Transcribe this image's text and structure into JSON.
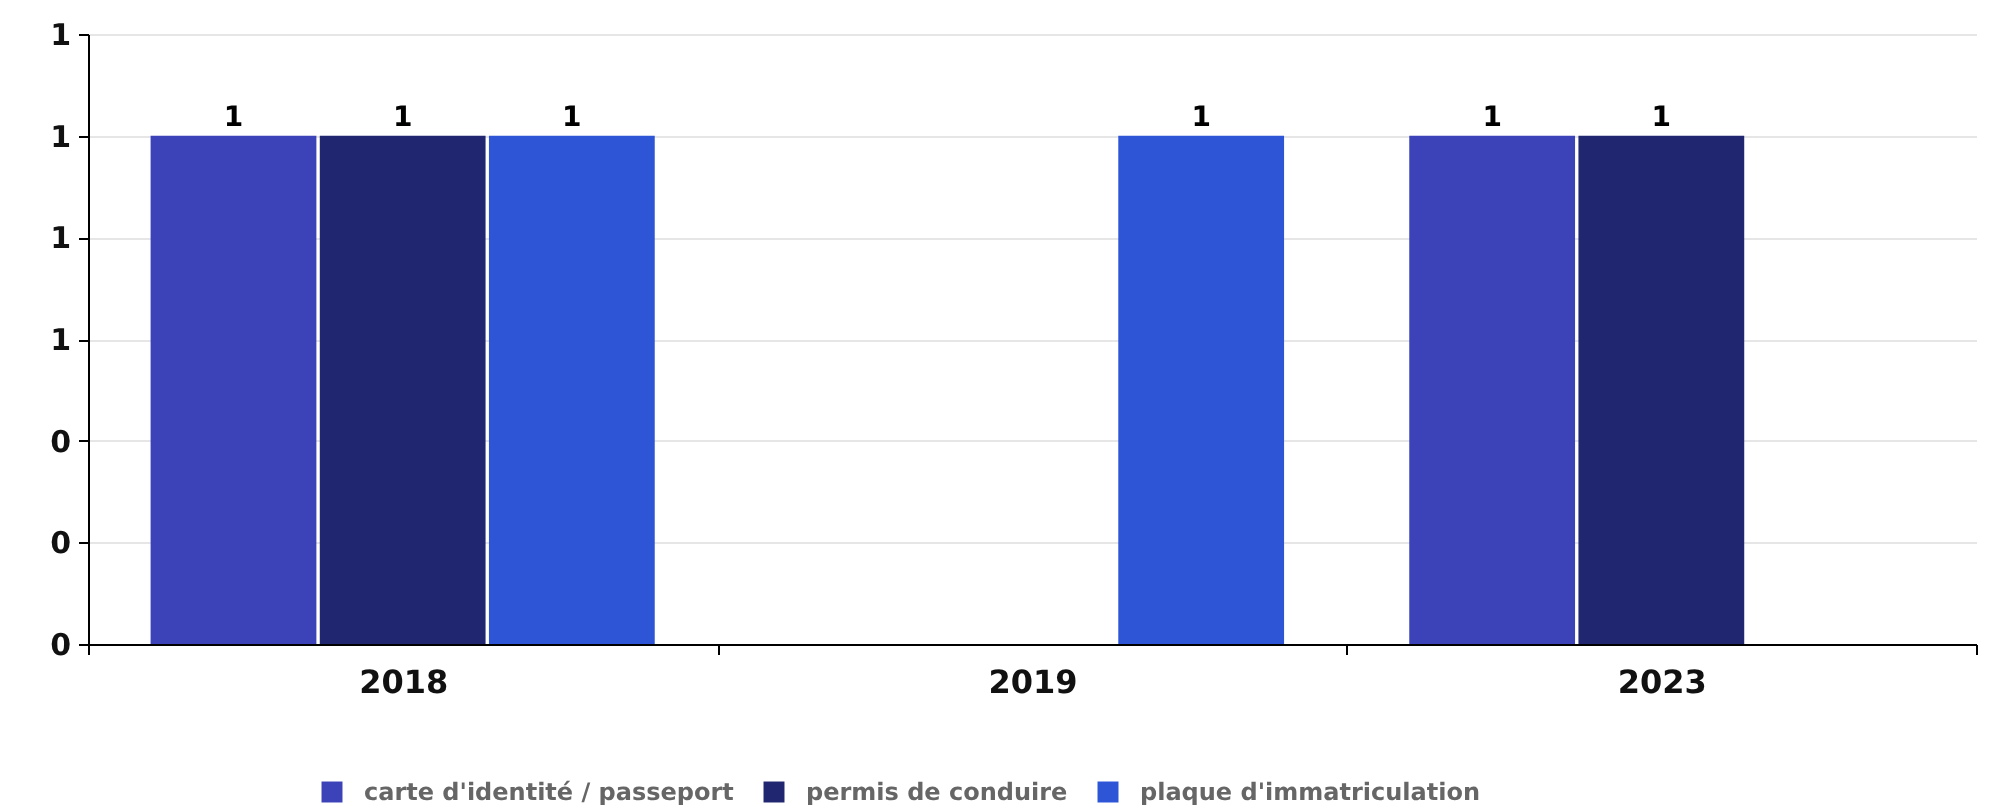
{
  "chart_data": {
    "type": "bar",
    "categories": [
      "2018",
      "2019",
      "2023"
    ],
    "series": [
      {
        "name": "carte d'identité / passeport",
        "color": "#3c42b8",
        "values": [
          1,
          null,
          1
        ]
      },
      {
        "name": "permis de conduire",
        "color": "#212670",
        "values": [
          1,
          null,
          1
        ]
      },
      {
        "name": "plaque d'immatriculation",
        "color": "#2d55d6",
        "values": [
          1,
          1,
          null
        ]
      }
    ],
    "ylim": [
      0,
      1.2
    ],
    "yticks": [
      0,
      {
        "value": 0.2,
        "label": "0"
      },
      {
        "value": 0.4,
        "label": "0"
      },
      {
        "value": 0.6,
        "label": "1"
      },
      {
        "value": 0.8,
        "label": "1"
      },
      1,
      {
        "value": 1.2,
        "label": "1"
      }
    ],
    "grid": "y",
    "legend": "bottom",
    "data_labels": true
  }
}
